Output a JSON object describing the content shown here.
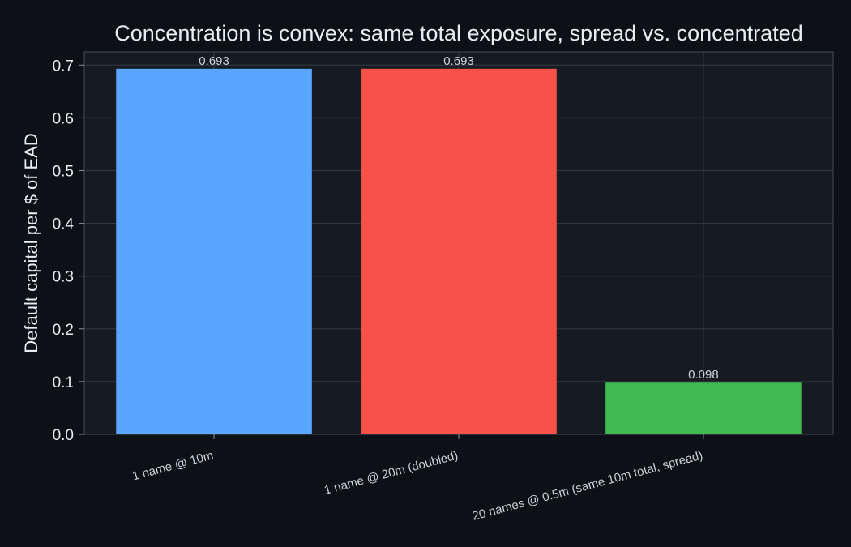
{
  "chart_data": {
    "type": "bar",
    "title": "Concentration is convex: same total exposure, spread vs. concentrated",
    "xlabel": "",
    "ylabel": "Default capital per $ of EAD",
    "ylim": [
      0,
      0.725
    ],
    "yticks": [
      "0.0",
      "0.1",
      "0.2",
      "0.3",
      "0.4",
      "0.5",
      "0.6",
      "0.7"
    ],
    "categories": [
      "1 name @ 10m",
      "1 name @ 20m (doubled)",
      "20 names @ 0.5m (same 10m total, spread)"
    ],
    "values": [
      0.693,
      0.693,
      0.098
    ],
    "data_labels": [
      "0.693",
      "0.693",
      "0.098"
    ],
    "bar_colors": [
      "#58a6ff",
      "#f85149",
      "#3fb950"
    ],
    "grid": true,
    "legend": "none"
  },
  "colors": {
    "page_background": "#0d1117",
    "plot_background": "#161b22",
    "grid": "#30363d",
    "spine": "#3d444d"
  }
}
